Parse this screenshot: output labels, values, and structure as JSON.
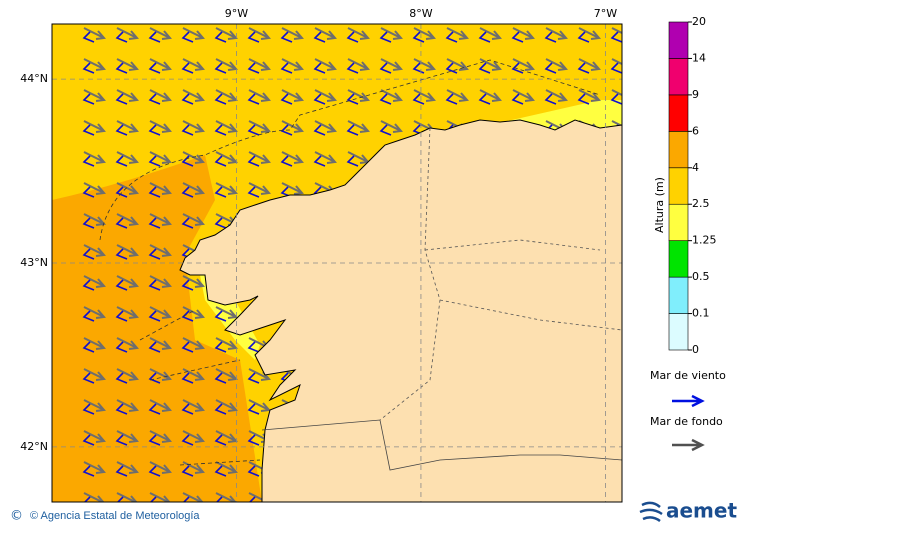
{
  "map": {
    "xlim": [
      -10,
      -6.91
    ],
    "ylim": [
      41.7,
      44.3
    ],
    "xticks": [
      {
        "value": -9,
        "label": "9°W"
      },
      {
        "value": -8,
        "label": "8°W"
      },
      {
        "value": -7,
        "label": "7°W"
      }
    ],
    "yticks": [
      {
        "value": 44,
        "label": "44°N"
      },
      {
        "value": 43,
        "label": "43°N"
      },
      {
        "value": 42,
        "label": "42°N"
      }
    ]
  },
  "colorbar": {
    "title": "Altura (m)",
    "levels": [
      0,
      0.1,
      0.5,
      1.25,
      2.5,
      4,
      6,
      9,
      14,
      20
    ],
    "colors": [
      "#dcfcff",
      "#80eefc",
      "#00e400",
      "#ffff40",
      "#ffd200",
      "#fba800",
      "#ff0000",
      "#f0006e",
      "#b000b0"
    ]
  },
  "legend": [
    {
      "label": "Mar de viento",
      "color": "#0010e0"
    },
    {
      "label": "Mar de fondo",
      "color": "#505050"
    }
  ],
  "footer": {
    "credit": "© Agencia Estatal de Meteorología",
    "logo": "aemet"
  }
}
